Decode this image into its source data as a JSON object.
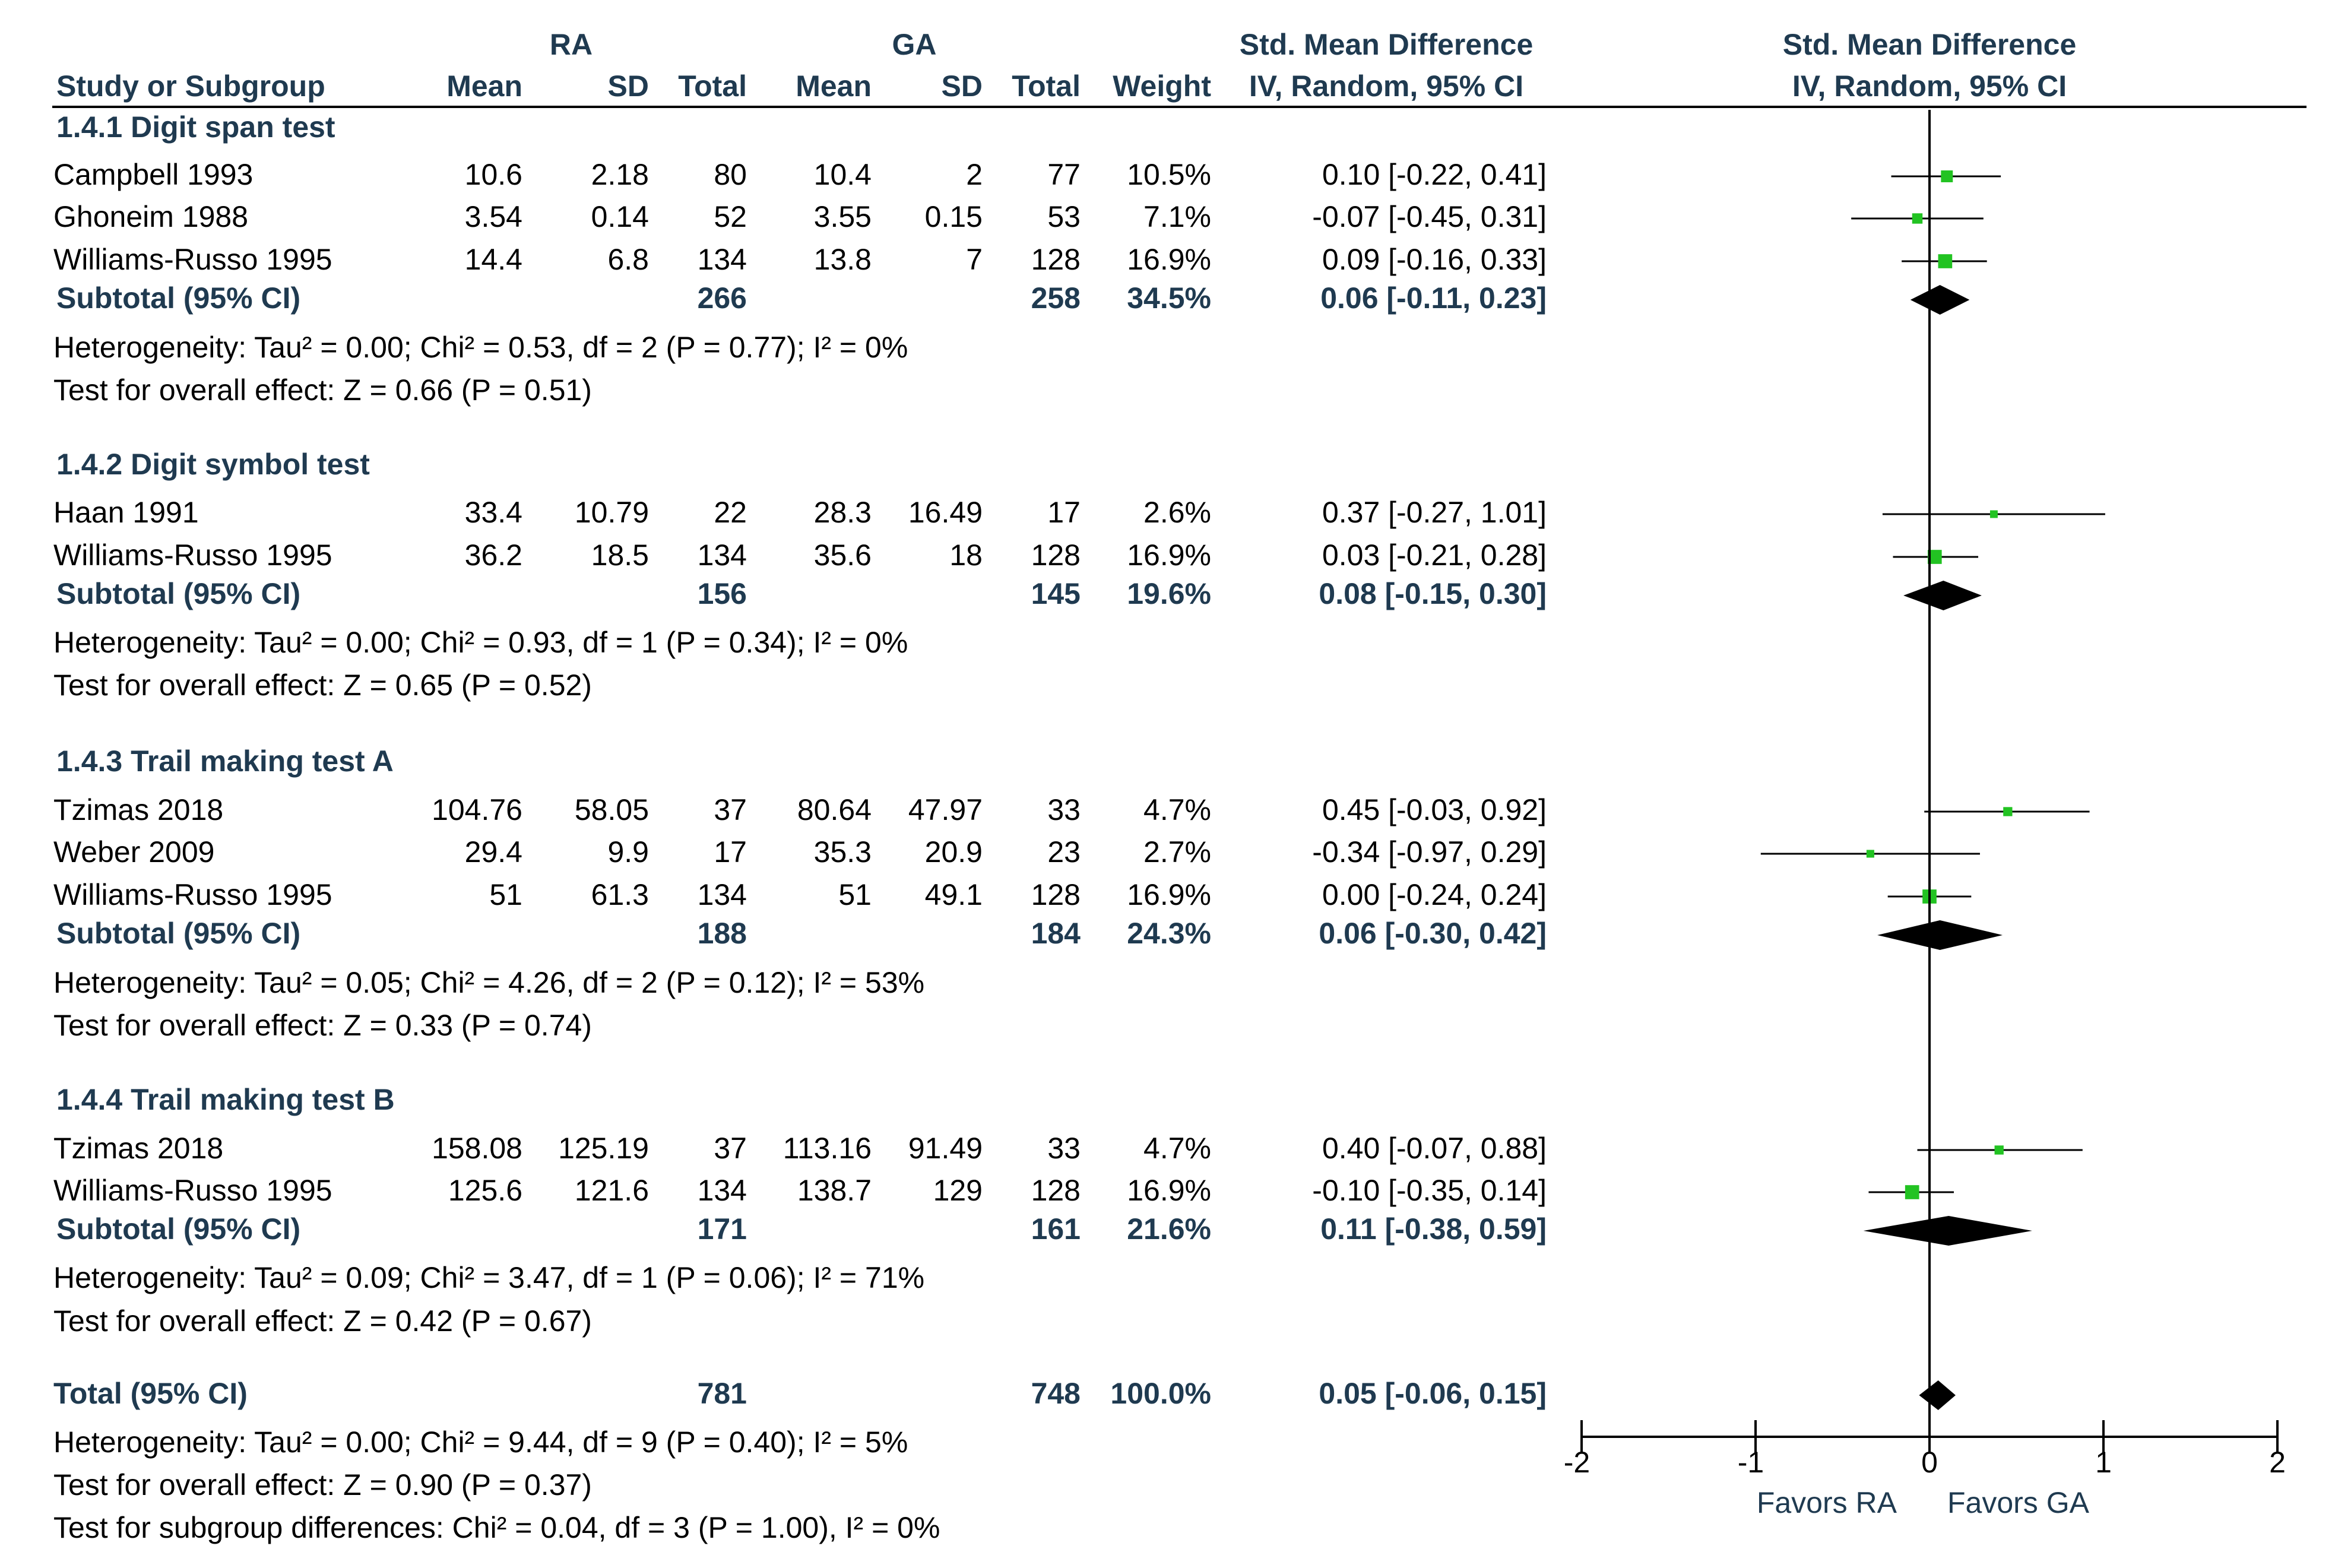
{
  "columns": {
    "ra": "RA",
    "ga": "GA",
    "smd_left_1": "Std. Mean Difference",
    "smd_left_2": "IV, Random, 95% CI",
    "smd_right_1": "Std. Mean Difference",
    "smd_right_2": "IV, Random, 95% CI",
    "study": "Study or Subgroup",
    "mean": "Mean",
    "sd": "SD",
    "total": "Total",
    "weight": "Weight"
  },
  "chart_data": {
    "type": "forest",
    "measure": "Std. Mean Difference, IV, Random, 95% CI",
    "axis": {
      "xlim": [
        -2,
        2
      ],
      "ticks": [
        -2,
        -1,
        0,
        1,
        2
      ],
      "tick_labels": [
        "-2",
        "-1",
        "0",
        "1",
        "2"
      ],
      "label_left": "Favors RA",
      "label_right": "Favors GA"
    },
    "groups": [
      {
        "title": "1.4.1 Digit span test",
        "studies": [
          {
            "name": "Campbell 1993",
            "ra_mean": "10.6",
            "ra_sd": "2.18",
            "ra_total": "80",
            "ga_mean": "10.4",
            "ga_sd": "2",
            "ga_total": "77",
            "weight": "10.5%",
            "ci_text": "0.10 [-0.22, 0.41]",
            "est": 0.1,
            "lo": -0.22,
            "hi": 0.41,
            "w": 10.5
          },
          {
            "name": "Ghoneim 1988",
            "ra_mean": "3.54",
            "ra_sd": "0.14",
            "ra_total": "52",
            "ga_mean": "3.55",
            "ga_sd": "0.15",
            "ga_total": "53",
            "weight": "7.1%",
            "ci_text": "-0.07 [-0.45, 0.31]",
            "est": -0.07,
            "lo": -0.45,
            "hi": 0.31,
            "w": 7.1
          },
          {
            "name": "Williams-Russo 1995",
            "ra_mean": "14.4",
            "ra_sd": "6.8",
            "ra_total": "134",
            "ga_mean": "13.8",
            "ga_sd": "7",
            "ga_total": "128",
            "weight": "16.9%",
            "ci_text": "0.09 [-0.16, 0.33]",
            "est": 0.09,
            "lo": -0.16,
            "hi": 0.33,
            "w": 16.9
          }
        ],
        "subtotal": {
          "label": "Subtotal (95% CI)",
          "ra_total": "266",
          "ga_total": "258",
          "weight": "34.5%",
          "ci_text": "0.06 [-0.11, 0.23]",
          "est": 0.06,
          "lo": -0.11,
          "hi": 0.23
        },
        "heterogeneity": "Heterogeneity: Tau² = 0.00; Chi² = 0.53, df = 2 (P = 0.77); I² = 0%",
        "overall": "Test for overall effect: Z = 0.66 (P = 0.51)"
      },
      {
        "title": "1.4.2 Digit symbol test",
        "studies": [
          {
            "name": "Haan 1991",
            "ra_mean": "33.4",
            "ra_sd": "10.79",
            "ra_total": "22",
            "ga_mean": "28.3",
            "ga_sd": "16.49",
            "ga_total": "17",
            "weight": "2.6%",
            "ci_text": "0.37 [-0.27, 1.01]",
            "est": 0.37,
            "lo": -0.27,
            "hi": 1.01,
            "w": 2.6
          },
          {
            "name": "Williams-Russo 1995",
            "ra_mean": "36.2",
            "ra_sd": "18.5",
            "ra_total": "134",
            "ga_mean": "35.6",
            "ga_sd": "18",
            "ga_total": "128",
            "weight": "16.9%",
            "ci_text": "0.03 [-0.21, 0.28]",
            "est": 0.03,
            "lo": -0.21,
            "hi": 0.28,
            "w": 16.9
          }
        ],
        "subtotal": {
          "label": "Subtotal (95% CI)",
          "ra_total": "156",
          "ga_total": "145",
          "weight": "19.6%",
          "ci_text": "0.08 [-0.15, 0.30]",
          "est": 0.08,
          "lo": -0.15,
          "hi": 0.3
        },
        "heterogeneity": "Heterogeneity: Tau² = 0.00; Chi² = 0.93, df = 1 (P = 0.34); I² = 0%",
        "overall": "Test for overall effect: Z = 0.65 (P = 0.52)"
      },
      {
        "title": "1.4.3 Trail making test A",
        "studies": [
          {
            "name": "Tzimas 2018",
            "ra_mean": "104.76",
            "ra_sd": "58.05",
            "ra_total": "37",
            "ga_mean": "80.64",
            "ga_sd": "47.97",
            "ga_total": "33",
            "weight": "4.7%",
            "ci_text": "0.45 [-0.03, 0.92]",
            "est": 0.45,
            "lo": -0.03,
            "hi": 0.92,
            "w": 4.7
          },
          {
            "name": "Weber 2009",
            "ra_mean": "29.4",
            "ra_sd": "9.9",
            "ra_total": "17",
            "ga_mean": "35.3",
            "ga_sd": "20.9",
            "ga_total": "23",
            "weight": "2.7%",
            "ci_text": "-0.34 [-0.97, 0.29]",
            "est": -0.34,
            "lo": -0.97,
            "hi": 0.29,
            "w": 2.7
          },
          {
            "name": "Williams-Russo 1995",
            "ra_mean": "51",
            "ra_sd": "61.3",
            "ra_total": "134",
            "ga_mean": "51",
            "ga_sd": "49.1",
            "ga_total": "128",
            "weight": "16.9%",
            "ci_text": "0.00 [-0.24, 0.24]",
            "est": 0.0,
            "lo": -0.24,
            "hi": 0.24,
            "w": 16.9
          }
        ],
        "subtotal": {
          "label": "Subtotal (95% CI)",
          "ra_total": "188",
          "ga_total": "184",
          "weight": "24.3%",
          "ci_text": "0.06 [-0.30, 0.42]",
          "est": 0.06,
          "lo": -0.3,
          "hi": 0.42
        },
        "heterogeneity": "Heterogeneity: Tau² = 0.05; Chi² = 4.26, df = 2 (P = 0.12); I² = 53%",
        "overall": "Test for overall effect: Z = 0.33 (P = 0.74)"
      },
      {
        "title": "1.4.4 Trail making test B",
        "studies": [
          {
            "name": "Tzimas 2018",
            "ra_mean": "158.08",
            "ra_sd": "125.19",
            "ra_total": "37",
            "ga_mean": "113.16",
            "ga_sd": "91.49",
            "ga_total": "33",
            "weight": "4.7%",
            "ci_text": "0.40 [-0.07, 0.88]",
            "est": 0.4,
            "lo": -0.07,
            "hi": 0.88,
            "w": 4.7
          },
          {
            "name": "Williams-Russo 1995",
            "ra_mean": "125.6",
            "ra_sd": "121.6",
            "ra_total": "134",
            "ga_mean": "138.7",
            "ga_sd": "129",
            "ga_total": "128",
            "weight": "16.9%",
            "ci_text": "-0.10 [-0.35, 0.14]",
            "est": -0.1,
            "lo": -0.35,
            "hi": 0.14,
            "w": 16.9
          }
        ],
        "subtotal": {
          "label": "Subtotal (95% CI)",
          "ra_total": "171",
          "ga_total": "161",
          "weight": "21.6%",
          "ci_text": "0.11 [-0.38, 0.59]",
          "est": 0.11,
          "lo": -0.38,
          "hi": 0.59
        },
        "heterogeneity": "Heterogeneity: Tau² = 0.09; Chi² = 3.47, df = 1 (P = 0.06); I² = 71%",
        "overall": "Test for overall effect: Z = 0.42 (P = 0.67)"
      }
    ],
    "total": {
      "label": "Total (95% CI)",
      "ra_total": "781",
      "ga_total": "748",
      "weight": "100.0%",
      "ci_text": "0.05 [-0.06, 0.15]",
      "est": 0.05,
      "lo": -0.06,
      "hi": 0.15,
      "heterogeneity": "Heterogeneity: Tau² = 0.00; Chi² = 9.44, df = 9 (P = 0.40); I² = 5%",
      "overall": "Test for overall effect: Z = 0.90 (P = 0.37)",
      "subgroup_diff": "Test for subgroup differences: Chi² = 0.04, df = 3 (P = 1.00), I² = 0%"
    }
  }
}
